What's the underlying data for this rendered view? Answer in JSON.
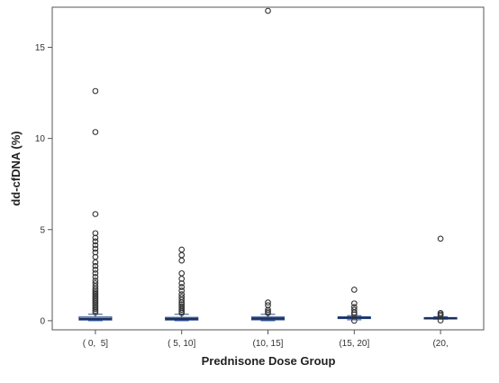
{
  "chart_data": {
    "type": "box",
    "title": "",
    "xlabel": "Prednisone Dose Group",
    "ylabel": "dd-cfDNA (%)",
    "ylim": [
      -0.5,
      17.2
    ],
    "yticks": [
      0,
      5,
      10,
      15
    ],
    "ytick_labels": [
      "0",
      "5",
      "10",
      "15"
    ],
    "grid": false,
    "categories": [
      "( 0,  5]",
      "( 5, 10]",
      "(10, 15]",
      "(15, 20]",
      "(20,"
    ],
    "box_color": "#2f4f8f",
    "outlier_color": "#333333",
    "boxes": [
      {
        "category": "( 0,  5]",
        "whisker_low": 0.0,
        "q1": 0.04,
        "median": 0.1,
        "q3": 0.2,
        "whisker_high": 0.35,
        "outliers": [
          12.6,
          10.35,
          5.85,
          4.8,
          4.55,
          4.35,
          4.15,
          3.95,
          3.75,
          3.5,
          3.2,
          3.0,
          2.8,
          2.6,
          2.4,
          2.2,
          2.05,
          1.9,
          1.75,
          1.65,
          1.55,
          1.45,
          1.35,
          1.25,
          1.15,
          1.05,
          0.95,
          0.85,
          0.75,
          0.65,
          0.55,
          0.45
        ]
      },
      {
        "category": "( 5, 10]",
        "whisker_low": 0.0,
        "q1": 0.04,
        "median": 0.1,
        "q3": 0.18,
        "whisker_high": 0.35,
        "outliers": [
          3.9,
          3.6,
          3.3,
          2.6,
          2.3,
          2.05,
          1.85,
          1.65,
          1.45,
          1.3,
          1.15,
          1.0,
          0.9,
          0.8,
          0.7,
          0.6,
          0.5,
          0.42
        ]
      },
      {
        "category": "(10, 15]",
        "whisker_low": 0.0,
        "q1": 0.05,
        "median": 0.12,
        "q3": 0.2,
        "whisker_high": 0.35,
        "outliers": [
          17.0,
          1.0,
          0.85,
          0.6,
          0.5,
          0.42
        ]
      },
      {
        "category": "(15, 20]",
        "whisker_low": 0.05,
        "q1": 0.12,
        "median": 0.17,
        "q3": 0.21,
        "whisker_high": 0.28,
        "outliers": [
          1.7,
          0.95,
          0.75,
          0.6,
          0.45,
          0.35,
          0.0
        ]
      },
      {
        "category": "(20,",
        "whisker_low": 0.08,
        "q1": 0.11,
        "median": 0.14,
        "q3": 0.17,
        "whisker_high": 0.22,
        "outliers": [
          4.5,
          0.42,
          0.35,
          0.28,
          0.02
        ]
      }
    ]
  }
}
